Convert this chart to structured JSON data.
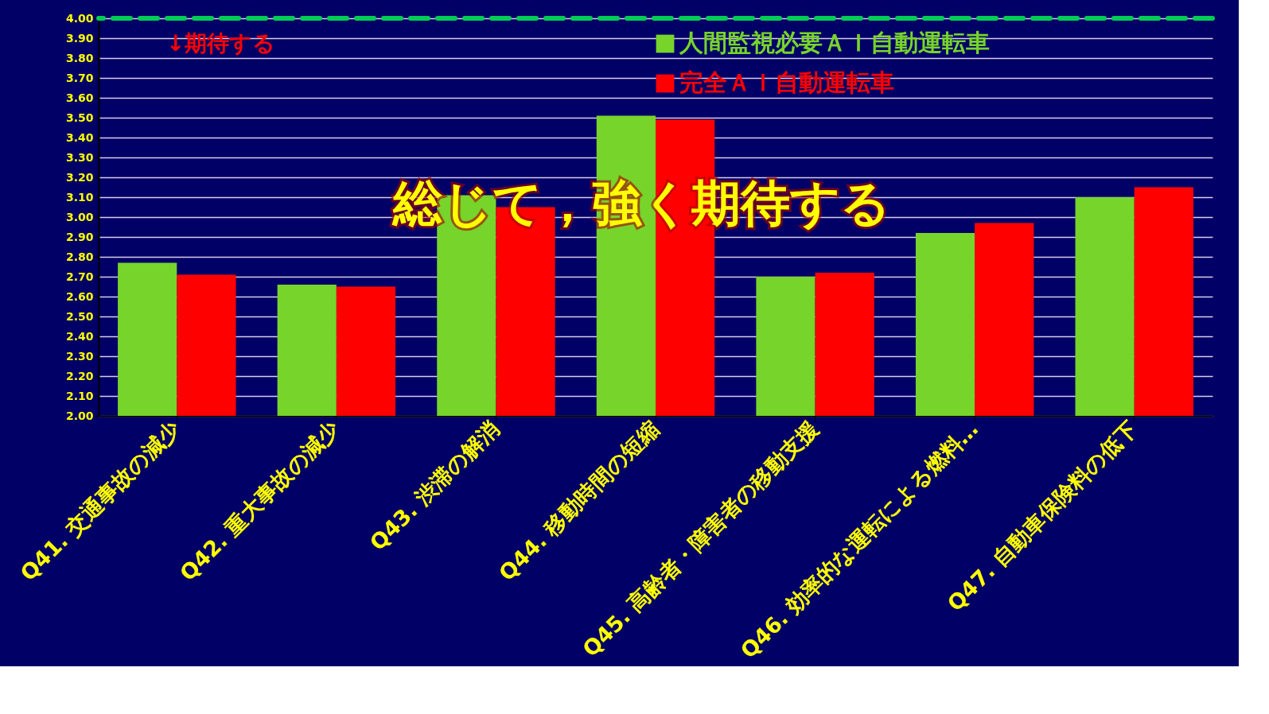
{
  "chart_data": {
    "type": "bar",
    "categories": [
      "Q41. 交通事故の減少",
      "Q42. 重大事故の減少",
      "Q43. 渋滞の解消",
      "Q44. 移動時間の短縮",
      "Q45. 高齢者・障害者の移動支援",
      "Q46. 効率的な運転による燃料…",
      "Q47. 自動車保険料の低下"
    ],
    "series": [
      {
        "name": "人間監視必要ＡＩ自動運転車",
        "color": "#77d42a",
        "values": [
          2.77,
          2.66,
          3.11,
          3.51,
          2.7,
          2.92,
          3.1
        ]
      },
      {
        "name": "完全ＡＩ自動運転車",
        "color": "#ff0000",
        "values": [
          2.71,
          2.65,
          3.05,
          3.49,
          2.72,
          2.97,
          3.15
        ]
      }
    ],
    "ylim": [
      2.0,
      4.0
    ],
    "yticks": [
      {
        "value": 2.0,
        "label": "2.00"
      },
      {
        "value": 2.1,
        "label": "2.10"
      },
      {
        "value": 2.2,
        "label": "2.20"
      },
      {
        "value": 2.3,
        "label": "2.30"
      },
      {
        "value": 2.4,
        "label": "2.40"
      },
      {
        "value": 2.5,
        "label": "2.50"
      },
      {
        "value": 2.6,
        "label": "2.60"
      },
      {
        "value": 2.7,
        "label": "2.70"
      },
      {
        "value": 2.8,
        "label": "2.80"
      },
      {
        "value": 2.9,
        "label": "2.90"
      },
      {
        "value": 3.0,
        "label": "3.00"
      },
      {
        "value": 3.1,
        "label": "3.10"
      },
      {
        "value": 3.2,
        "label": "3.20"
      },
      {
        "value": 3.3,
        "label": "3.30"
      },
      {
        "value": 3.4,
        "label": "3.40"
      },
      {
        "value": 3.5,
        "label": "3.50"
      },
      {
        "value": 3.6,
        "label": "3.60"
      },
      {
        "value": 3.7,
        "label": "3.70"
      },
      {
        "value": 3.8,
        "label": "3.80"
      },
      {
        "value": 3.9,
        "label": "3.90"
      },
      {
        "value": 4.0,
        "label": "4.00"
      }
    ],
    "ref_lines": [
      {
        "axis": "y",
        "value": 4.0,
        "color": "#00cc55",
        "line_style": "dashed"
      }
    ],
    "annotations": [
      "↓期待する",
      "総じて，強く期待する"
    ],
    "grid": "y",
    "legend": "top right"
  }
}
